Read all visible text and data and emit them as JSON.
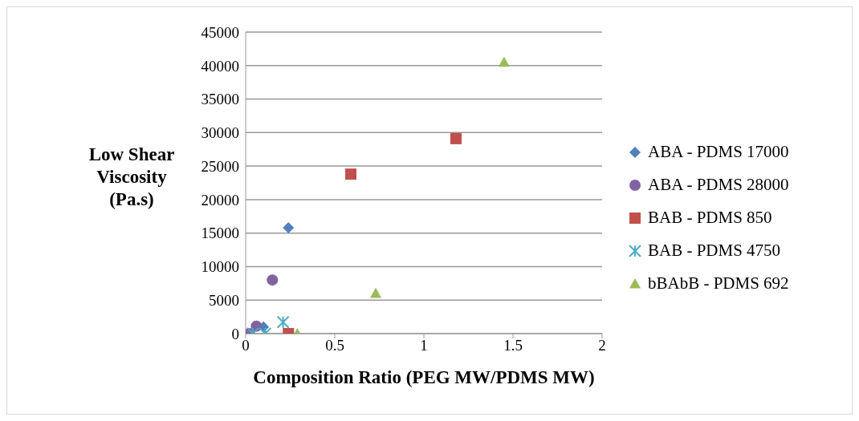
{
  "chart_data": {
    "type": "scatter",
    "xlabel": "Composition Ratio (PEG MW/PDMS MW)",
    "ylabel": "Low Shear Viscosity (Pa.s)",
    "xlim": [
      0,
      2
    ],
    "xticks": [
      0,
      0.5,
      1,
      1.5,
      2
    ],
    "ylim": [
      0,
      45000
    ],
    "yticks": [
      0,
      5000,
      10000,
      15000,
      20000,
      25000,
      30000,
      35000,
      40000,
      45000
    ],
    "grid": "y",
    "legend": "right",
    "series": [
      {
        "name": "ABA - PDMS 17000",
        "color": "#4f81bd",
        "marker": "diamond",
        "x": [
          0.24,
          0.1
        ],
        "values": [
          15800,
          1000
        ]
      },
      {
        "name": "ABA - PDMS 28000",
        "color": "#8064a2",
        "marker": "circle",
        "x": [
          0.15,
          0.06,
          0.02
        ],
        "values": [
          8000,
          1100,
          0
        ]
      },
      {
        "name": "BAB - PDMS 850",
        "color": "#c0504d",
        "marker": "square",
        "x": [
          0.59,
          1.18,
          0.24
        ],
        "values": [
          23800,
          29100,
          0
        ]
      },
      {
        "name": "BAB - PDMS 4750",
        "color": "#4bacc6",
        "marker": "cross",
        "x": [
          0.21,
          0.04,
          0.11
        ],
        "values": [
          1700,
          0,
          0
        ]
      },
      {
        "name": "bBAbB - PDMS 692",
        "color": "#9bbb59",
        "marker": "triangle",
        "x": [
          1.45,
          0.73,
          0.29
        ],
        "values": [
          40500,
          6000,
          0
        ]
      }
    ]
  }
}
